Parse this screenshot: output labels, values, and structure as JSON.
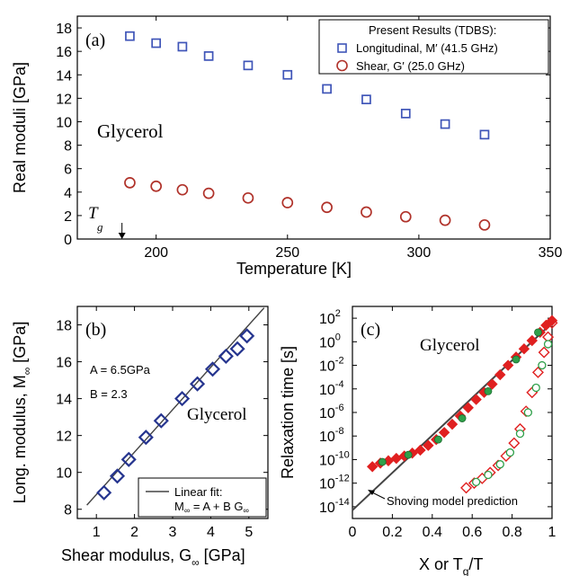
{
  "chart_data": [
    {
      "panel": "(a)",
      "type": "scatter",
      "xlabel": "Temperature [K]",
      "ylabel": "Real moduli [GPa]",
      "xlim": [
        170,
        350
      ],
      "ylim": [
        0,
        19
      ],
      "xticks": [
        200,
        250,
        300,
        350
      ],
      "yticks": [
        0,
        2,
        4,
        6,
        8,
        10,
        12,
        14,
        16,
        18
      ],
      "annotation": "Glycerol",
      "tg_label": "T",
      "tg_sub": "g",
      "tg_value": 187,
      "legend_title": "Present Results (TDBS):",
      "legend_position": "top-right",
      "series": [
        {
          "name": "Longitudinal, M′ (41.5 GHz)",
          "color": "#3f55b8",
          "marker": "square",
          "x": [
            190,
            200,
            210,
            220,
            235,
            250,
            265,
            280,
            295,
            310,
            325
          ],
          "y": [
            17.3,
            16.7,
            16.4,
            15.6,
            14.8,
            14.0,
            12.8,
            11.9,
            10.7,
            9.8,
            8.9
          ]
        },
        {
          "name": "Shear, G′ (25.0 GHz)",
          "color": "#b0322a",
          "marker": "circle",
          "x": [
            190,
            200,
            210,
            220,
            235,
            250,
            265,
            280,
            295,
            310,
            325
          ],
          "y": [
            4.8,
            4.5,
            4.2,
            3.9,
            3.5,
            3.1,
            2.7,
            2.3,
            1.9,
            1.6,
            1.2
          ]
        }
      ]
    },
    {
      "panel": "(b)",
      "type": "scatter",
      "xlabel": "Shear modulus, G",
      "xlabel_sub": "∞",
      "xlabel_unit": " [GPa]",
      "ylabel": "Long. modulus, M",
      "ylabel_sub": "∞",
      "ylabel_unit": " [GPa]",
      "xlim": [
        0.5,
        5.5
      ],
      "ylim": [
        7.5,
        19
      ],
      "xticks": [
        1,
        2,
        3,
        4,
        5
      ],
      "yticks": [
        8,
        10,
        12,
        14,
        16,
        18
      ],
      "annotation": "Glycerol",
      "param_a": "A = 6.5GPa",
      "param_b": "B = 2.3",
      "legend_position": "bottom-right",
      "fit": {
        "name": "Linear fit:",
        "eq_pre": "M",
        "eq_sub1": "∞",
        "eq_mid": " = A + B G",
        "eq_sub2": "∞",
        "A": 6.5,
        "B": 2.3
      },
      "series": [
        {
          "color": "#26358f",
          "marker": "diamond",
          "x": [
            1.2,
            1.55,
            1.85,
            2.3,
            2.7,
            3.25,
            3.65,
            4.05,
            4.4,
            4.7,
            4.95
          ],
          "y": [
            8.9,
            9.8,
            10.7,
            11.9,
            12.8,
            14.0,
            14.8,
            15.6,
            16.3,
            16.7,
            17.4
          ]
        }
      ]
    },
    {
      "panel": "(c)",
      "type": "scatter",
      "xlabel": "X or T",
      "xlabel_sub": "g",
      "xlabel_unit": "/T",
      "ylabel": "Relaxation time [s]",
      "xlim": [
        0,
        1
      ],
      "ylim_log10": [
        -15,
        3
      ],
      "xticks": [
        0,
        0.2,
        0.4,
        0.6,
        0.8,
        1
      ],
      "ytick_exponents": [
        -14,
        -12,
        -10,
        -8,
        -6,
        -4,
        -2,
        0,
        2
      ],
      "annotation": "Glycerol",
      "line_label": "Shoving model prediction",
      "prediction_line": {
        "x": [
          0,
          1
        ],
        "log10_y": [
          -14.3,
          1.6
        ]
      },
      "series": [
        {
          "color": "#e02020",
          "marker": "diamond-filled",
          "x": [
            0.1,
            0.14,
            0.18,
            0.22,
            0.26,
            0.3,
            0.34,
            0.38,
            0.42,
            0.46,
            0.5,
            0.54,
            0.58,
            0.62,
            0.66,
            0.7,
            0.74,
            0.78,
            0.82,
            0.86,
            0.9,
            0.94,
            0.97,
            1.0
          ],
          "log10_y": [
            -10.6,
            -10.3,
            -10.1,
            -9.9,
            -9.7,
            -9.45,
            -9.2,
            -8.8,
            -8.3,
            -7.7,
            -7.0,
            -6.3,
            -5.6,
            -4.9,
            -4.3,
            -3.6,
            -2.8,
            -2.0,
            -1.3,
            -0.6,
            0.1,
            0.8,
            1.4,
            1.8
          ]
        },
        {
          "color": "#2fa04a",
          "marker": "circle-filled",
          "x": [
            0.15,
            0.28,
            0.43,
            0.55,
            0.68,
            0.82,
            0.93
          ],
          "log10_y": [
            -10.2,
            -9.6,
            -8.3,
            -6.5,
            -4.2,
            -1.5,
            0.8
          ]
        },
        {
          "color": "#e02020",
          "marker": "diamond-open",
          "x": [
            0.57,
            0.61,
            0.65,
            0.69,
            0.73,
            0.77,
            0.81,
            0.84,
            0.87,
            0.9,
            0.93,
            0.96,
            0.98,
            1.0
          ],
          "log10_y": [
            -12.4,
            -12.0,
            -11.6,
            -11.1,
            -10.5,
            -9.7,
            -8.6,
            -7.4,
            -5.9,
            -4.3,
            -2.6,
            -0.9,
            0.4,
            1.6
          ]
        },
        {
          "color": "#2fa04a",
          "marker": "circle-open",
          "x": [
            0.62,
            0.68,
            0.74,
            0.79,
            0.84,
            0.88,
            0.92,
            0.95,
            0.98
          ],
          "log10_y": [
            -11.9,
            -11.3,
            -10.4,
            -9.4,
            -7.8,
            -6.0,
            -3.9,
            -2.0,
            -0.2
          ]
        }
      ]
    }
  ]
}
